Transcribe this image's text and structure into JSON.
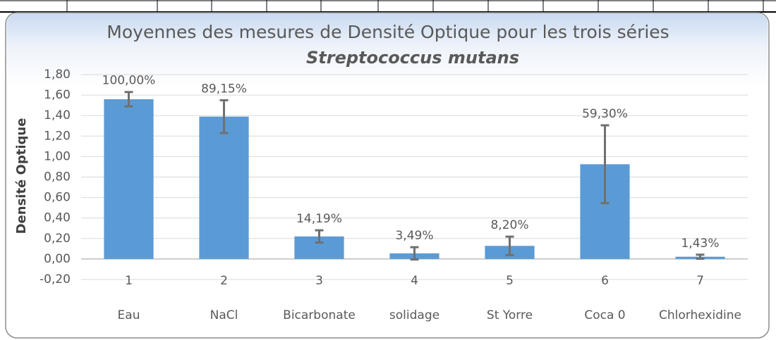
{
  "chart_data": {
    "type": "bar",
    "title": "Moyennes des mesures de Densité Optique pour les trois séries",
    "subtitle": "Streptococcus mutans",
    "ylabel": "Densité Optique",
    "categories": [
      "1",
      "2",
      "3",
      "4",
      "5",
      "6",
      "7"
    ],
    "category_names": [
      "Eau",
      "NaCl",
      "Bicarbonate",
      "solidage",
      "St Yorre",
      "Coca 0",
      "Chlorhexidine"
    ],
    "values": [
      1.56,
      1.39,
      0.22,
      0.055,
      0.128,
      0.925,
      0.022
    ],
    "errors": [
      0.07,
      0.16,
      0.06,
      0.06,
      0.09,
      0.38,
      0.02
    ],
    "percent_labels": [
      "100,00%",
      "89,15%",
      "14,19%",
      "3,49%",
      "8,20%",
      "59,30%",
      "1,43%"
    ],
    "color": "#5b9bd5",
    "error_color": "#707070",
    "ylim": [
      -0.2,
      1.8
    ],
    "yticks": [
      {
        "value": -0.2,
        "label": "-0,20"
      },
      {
        "value": 0,
        "label": "0,00"
      },
      {
        "value": 0.2,
        "label": "0,20"
      },
      {
        "value": 0.4,
        "label": "0,40"
      },
      {
        "value": 0.6,
        "label": "0,60"
      },
      {
        "value": 0.8,
        "label": "0,80"
      },
      {
        "value": 1.0,
        "label": "1,00"
      },
      {
        "value": 1.2,
        "label": "1,20"
      },
      {
        "value": 1.4,
        "label": "1,40"
      },
      {
        "value": 1.6,
        "label": "1,60"
      },
      {
        "value": 1.8,
        "label": "1,80"
      }
    ],
    "grid": true
  }
}
